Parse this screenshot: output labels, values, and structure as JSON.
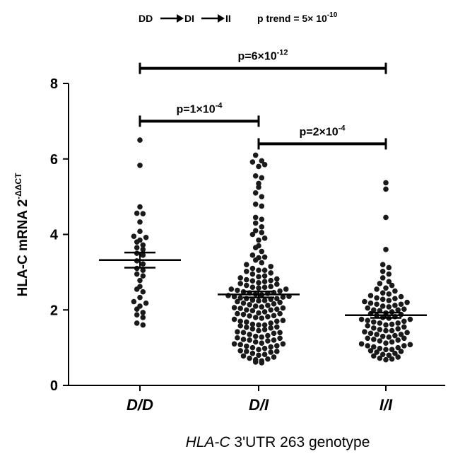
{
  "chart_data": {
    "type": "scatter",
    "subtype": "dot-plot with mean and standard error bars",
    "trend": {
      "groups": [
        "DD",
        "DI",
        "II"
      ],
      "label": "p trend = 5× 10",
      "exponent": "-10"
    },
    "xlabel": {
      "italic": "HLA-C",
      "rest": " 3'UTR 263 genotype"
    },
    "ylabel": {
      "main": "HLA-C mRNA 2",
      "sup": "-ΔΔCT"
    },
    "ylim": [
      0,
      8
    ],
    "yticks": [
      "0",
      "2",
      "4",
      "6",
      "8"
    ],
    "categories": [
      "D/D",
      "D/I",
      "I/I"
    ],
    "summary": [
      {
        "category": "D/D",
        "mean": 3.32,
        "sem_low": 3.12,
        "sem_high": 3.52
      },
      {
        "category": "D/I",
        "mean": 2.41,
        "sem_low": 2.33,
        "sem_high": 2.49
      },
      {
        "category": "I/I",
        "mean": 1.86,
        "sem_low": 1.79,
        "sem_high": 1.93
      }
    ],
    "comparisons": [
      {
        "from": "D/D",
        "to": "I/I",
        "y": 8.4,
        "p": "p=6×10",
        "exp": "-12"
      },
      {
        "from": "D/D",
        "to": "D/I",
        "y": 7.0,
        "p": "p=1×10",
        "exp": "-4"
      },
      {
        "from": "D/I",
        "to": "I/I",
        "y": 6.4,
        "p": "p=2×10",
        "exp": "-4"
      }
    ],
    "series": [
      {
        "category": "D/D",
        "values": [
          6.5,
          5.83,
          4.73,
          4.56,
          4.55,
          4.33,
          4.08,
          3.95,
          3.92,
          3.85,
          3.8,
          3.72,
          3.65,
          3.6,
          3.5,
          3.45,
          3.3,
          3.22,
          3.1,
          3.05,
          2.95,
          2.9,
          2.78,
          2.62,
          2.55,
          2.48,
          2.33,
          2.22,
          2.18,
          2.1,
          2.02,
          1.93,
          1.87,
          1.8,
          1.65,
          1.6
        ]
      },
      {
        "category": "D/I",
        "values": [
          6.1,
          5.95,
          5.92,
          5.85,
          5.8,
          5.55,
          5.5,
          5.35,
          5.25,
          5.1,
          5.0,
          4.8,
          4.75,
          4.45,
          4.4,
          4.3,
          4.2,
          4.1,
          4.05,
          4.0,
          3.9,
          3.85,
          3.7,
          3.65,
          3.55,
          3.45,
          3.4,
          3.38,
          3.32,
          3.25,
          3.2,
          3.15,
          3.1,
          3.05,
          3.02,
          2.98,
          2.95,
          2.9,
          2.88,
          2.85,
          2.82,
          2.8,
          2.78,
          2.75,
          2.72,
          2.7,
          2.68,
          2.65,
          2.62,
          2.6,
          2.58,
          2.55,
          2.52,
          2.5,
          2.48,
          2.46,
          2.44,
          2.42,
          2.4,
          2.38,
          2.36,
          2.34,
          2.32,
          2.3,
          2.28,
          2.26,
          2.24,
          2.22,
          2.2,
          2.18,
          2.16,
          2.14,
          2.12,
          2.1,
          2.08,
          2.06,
          2.04,
          2.02,
          2.0,
          1.98,
          1.95,
          1.92,
          1.9,
          1.88,
          1.85,
          1.82,
          1.8,
          1.78,
          1.75,
          1.72,
          1.7,
          1.68,
          1.65,
          1.62,
          1.6,
          1.58,
          1.55,
          1.52,
          1.5,
          1.48,
          1.45,
          1.42,
          1.4,
          1.38,
          1.35,
          1.32,
          1.3,
          1.28,
          1.25,
          1.22,
          1.2,
          1.18,
          1.15,
          1.12,
          1.1,
          1.08,
          1.05,
          1.02,
          1.0,
          0.98,
          0.95,
          0.92,
          0.9,
          0.88,
          0.85,
          0.82,
          0.8,
          0.78,
          0.75,
          0.72,
          0.7,
          0.68,
          0.65,
          0.62,
          0.6,
          1.04,
          1.26,
          1.54,
          1.84,
          2.05,
          2.35,
          2.55,
          2.77,
          3.05,
          1.1,
          1.4,
          1.7,
          2.0,
          2.3,
          2.6,
          0.9,
          1.2,
          1.6,
          1.9,
          2.25,
          2.45
        ]
      },
      {
        "category": "I/I",
        "values": [
          5.37,
          5.2,
          4.45,
          3.6,
          3.2,
          3.12,
          3.02,
          2.95,
          2.85,
          2.75,
          2.7,
          2.65,
          2.58,
          2.55,
          2.5,
          2.45,
          2.42,
          2.38,
          2.35,
          2.32,
          2.3,
          2.28,
          2.25,
          2.22,
          2.2,
          2.18,
          2.15,
          2.12,
          2.1,
          2.08,
          2.05,
          2.02,
          2.0,
          1.98,
          1.95,
          1.92,
          1.9,
          1.88,
          1.85,
          1.82,
          1.8,
          1.78,
          1.75,
          1.72,
          1.7,
          1.68,
          1.65,
          1.62,
          1.6,
          1.58,
          1.55,
          1.52,
          1.5,
          1.48,
          1.45,
          1.42,
          1.4,
          1.38,
          1.35,
          1.32,
          1.3,
          1.28,
          1.25,
          1.22,
          1.2,
          1.18,
          1.15,
          1.12,
          1.1,
          1.08,
          1.05,
          1.02,
          1.0,
          0.98,
          0.95,
          0.92,
          0.9,
          0.88,
          0.85,
          0.82,
          0.8,
          0.78,
          0.75,
          0.72,
          0.7,
          0.68,
          1.05,
          1.45,
          1.75,
          2.0,
          2.15,
          1.25,
          1.65,
          0.95,
          1.35
        ]
      }
    ]
  }
}
